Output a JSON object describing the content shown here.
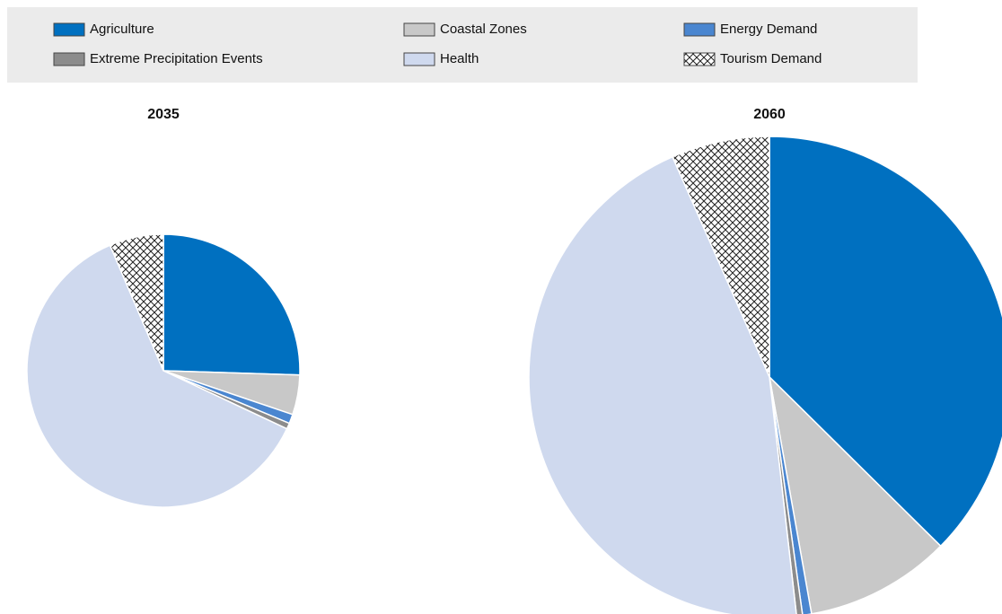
{
  "chart_data": {
    "type": "pie",
    "categories": [
      "Agriculture",
      "Coastal Zones",
      "Energy Demand",
      "Extreme Precipitation Events",
      "Health",
      "Tourism Demand"
    ],
    "colors": [
      "#0070c0",
      "#c8c8c8",
      "#4a86d0",
      "#8c8c8c",
      "#cfd9ee",
      "#ffffff"
    ],
    "hatch": [
      false,
      false,
      false,
      false,
      false,
      true
    ],
    "series": [
      {
        "name": "2035",
        "values": [
          25.5,
          4.7,
          1.1,
          0.7,
          61.6,
          6.4
        ]
      },
      {
        "name": "2060",
        "values": [
          37.4,
          9.8,
          0.6,
          0.4,
          45.2,
          6.6
        ]
      }
    ]
  }
}
